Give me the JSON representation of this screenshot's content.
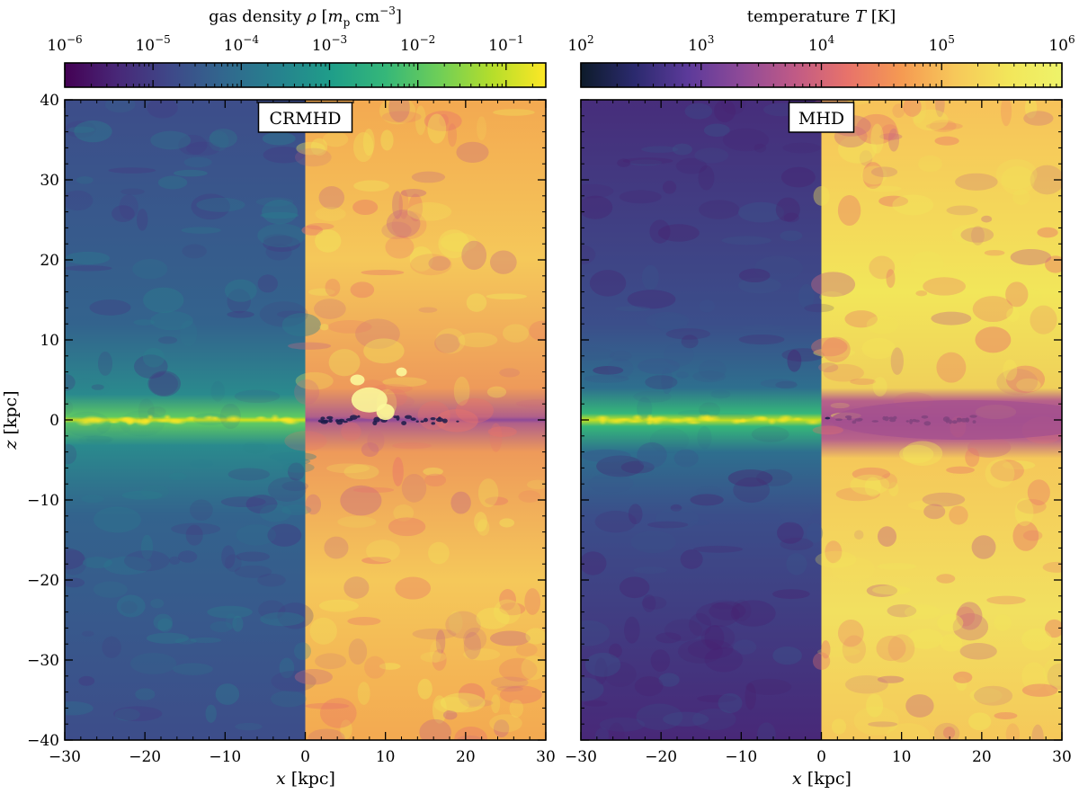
{
  "chart_data": [
    {
      "type": "heatmap",
      "panel": "left",
      "label": "CRMHD",
      "xlabel": "x [kpc]",
      "ylabel": "z [kpc]",
      "xlim": [
        -30,
        30
      ],
      "ylim": [
        -40,
        40
      ],
      "x_ticks": [
        -30,
        -20,
        -10,
        0,
        10,
        20,
        30
      ],
      "x_tick_labels": [
        "−30",
        "−20",
        "−10",
        "0",
        "10",
        "20",
        "30"
      ],
      "y_ticks": [
        40,
        30,
        20,
        10,
        0,
        -10,
        -20,
        -30,
        -40
      ],
      "y_tick_labels": [
        "40",
        "30",
        "20",
        "10",
        "0",
        "−10",
        "−20",
        "−30",
        "−40"
      ],
      "halves": [
        {
          "x_range": [
            -30,
            0
          ],
          "quantity": "gas density",
          "colorbar": "density"
        },
        {
          "x_range": [
            0,
            30
          ],
          "quantity": "temperature",
          "colorbar": "temperature"
        }
      ]
    },
    {
      "type": "heatmap",
      "panel": "right",
      "label": "MHD",
      "xlabel": "x [kpc]",
      "xlim": [
        -30,
        30
      ],
      "ylim": [
        -40,
        40
      ],
      "x_ticks": [
        -30,
        -20,
        -10,
        0,
        10,
        20,
        30
      ],
      "x_tick_labels": [
        "−30",
        "−20",
        "−10",
        "0",
        "10",
        "20",
        "30"
      ],
      "halves": [
        {
          "x_range": [
            -30,
            0
          ],
          "quantity": "gas density",
          "colorbar": "density"
        },
        {
          "x_range": [
            0,
            30
          ],
          "quantity": "temperature",
          "colorbar": "temperature"
        }
      ]
    }
  ],
  "colorbars": {
    "density": {
      "title": "gas density ρ [m_p cm^-3]",
      "title_parts": [
        "gas density ",
        "ρ",
        " [",
        "m",
        "p",
        " cm",
        "−3",
        "]"
      ],
      "scale": "log",
      "range": [
        -6,
        -0.55
      ],
      "tick_exponents": [
        -6,
        -5,
        -4,
        -3,
        -2,
        -1
      ],
      "colormap": "viridis",
      "stops": [
        "#440154",
        "#482878",
        "#3e4989",
        "#31688e",
        "#26828e",
        "#1f9e89",
        "#35b779",
        "#6ece58",
        "#b5de2b",
        "#fde725"
      ]
    },
    "temperature": {
      "title": "temperature T [K]",
      "title_parts": [
        "temperature ",
        "T",
        " [K]"
      ],
      "scale": "log",
      "range": [
        2,
        6
      ],
      "tick_exponents": [
        2,
        3,
        4,
        5,
        6
      ],
      "colormap": "plasma-like",
      "stops": [
        "#0d1b2a",
        "#2b2a6e",
        "#5c3a9a",
        "#8e4a98",
        "#c05a86",
        "#e8736a",
        "#f59a52",
        "#f7c85a",
        "#f2e65a",
        "#eef36a"
      ]
    }
  }
}
